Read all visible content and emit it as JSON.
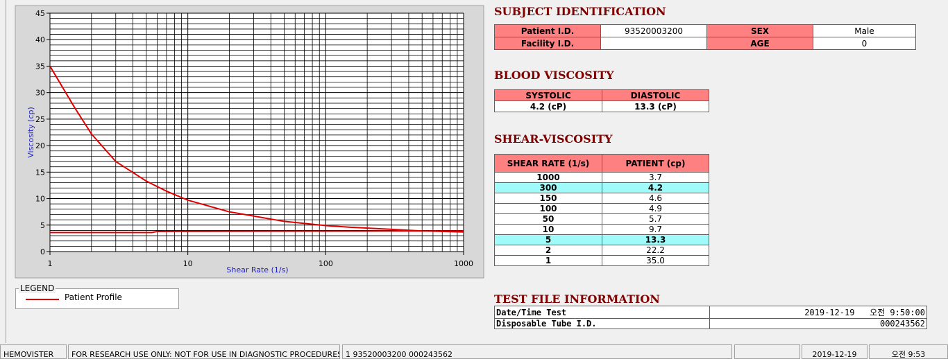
{
  "chart_data": {
    "type": "line",
    "xlabel": "Shear Rate (1/s)",
    "ylabel": "Viscosity (cp)",
    "x": [
      1,
      1.5,
      2,
      3,
      5,
      7,
      10,
      20,
      50,
      100,
      150,
      300,
      500,
      1000,
      null,
      1,
      5.5,
      6,
      1000
    ],
    "series": [
      {
        "name": "Patient Profile",
        "color": "#e00000",
        "values": [
          35,
          27.3,
          22.2,
          17,
          13.3,
          11.4,
          9.7,
          7.5,
          5.7,
          4.9,
          4.6,
          4.2,
          3.9,
          3.7,
          null,
          3.6,
          3.6,
          3.8,
          3.9
        ]
      }
    ],
    "xlim": [
      1,
      1000
    ],
    "ylim": [
      0,
      45
    ],
    "xticks": [
      1,
      10,
      100,
      1000
    ],
    "yticks": [
      0,
      5,
      10,
      15,
      20,
      25,
      30,
      35,
      40,
      45
    ],
    "xscale": "log",
    "grid": true,
    "legend_title": "LEGEND"
  },
  "subject": {
    "title": "SUBJECT IDENTIFICATION",
    "patient_id_label": "Patient I.D.",
    "patient_id": "93520003200",
    "sex_label": "SEX",
    "sex": "Male",
    "facility_label": "Facility I.D.",
    "age_label": "AGE",
    "age": "0"
  },
  "blood": {
    "title": "BLOOD VISCOSITY",
    "headers": [
      "SYSTOLIC",
      "DIASTOLIC"
    ],
    "values": [
      "4.2 (cP)",
      "13.3 (cP)"
    ]
  },
  "shear": {
    "title": "SHEAR-VISCOSITY",
    "headers": [
      "SHEAR RATE (1/s)",
      "PATIENT (cp)"
    ],
    "rows": [
      [
        "1000",
        "3.7"
      ],
      [
        "300",
        "4.2"
      ],
      [
        "150",
        "4.6"
      ],
      [
        "100",
        "4.9"
      ],
      [
        "50",
        "5.7"
      ],
      [
        "10",
        "9.7"
      ],
      [
        "5",
        "13.3"
      ],
      [
        "2",
        "22.2"
      ],
      [
        "1",
        "35.0"
      ]
    ]
  },
  "test": {
    "title": "TEST FILE INFORMATION",
    "rows": [
      [
        "Date/Time Test",
        "2019-12-19   오전 9:50:00"
      ],
      [
        "Disposable Tube I.D.",
        "000243562"
      ]
    ]
  },
  "status": [
    "HEMOVISTER",
    "FOR RESEARCH USE ONLY: NOT FOR USE IN DIAGNOSTIC PROCEDURES",
    "1  93520003200  000243562",
    "2019-12-19",
    "오전 9:53"
  ]
}
